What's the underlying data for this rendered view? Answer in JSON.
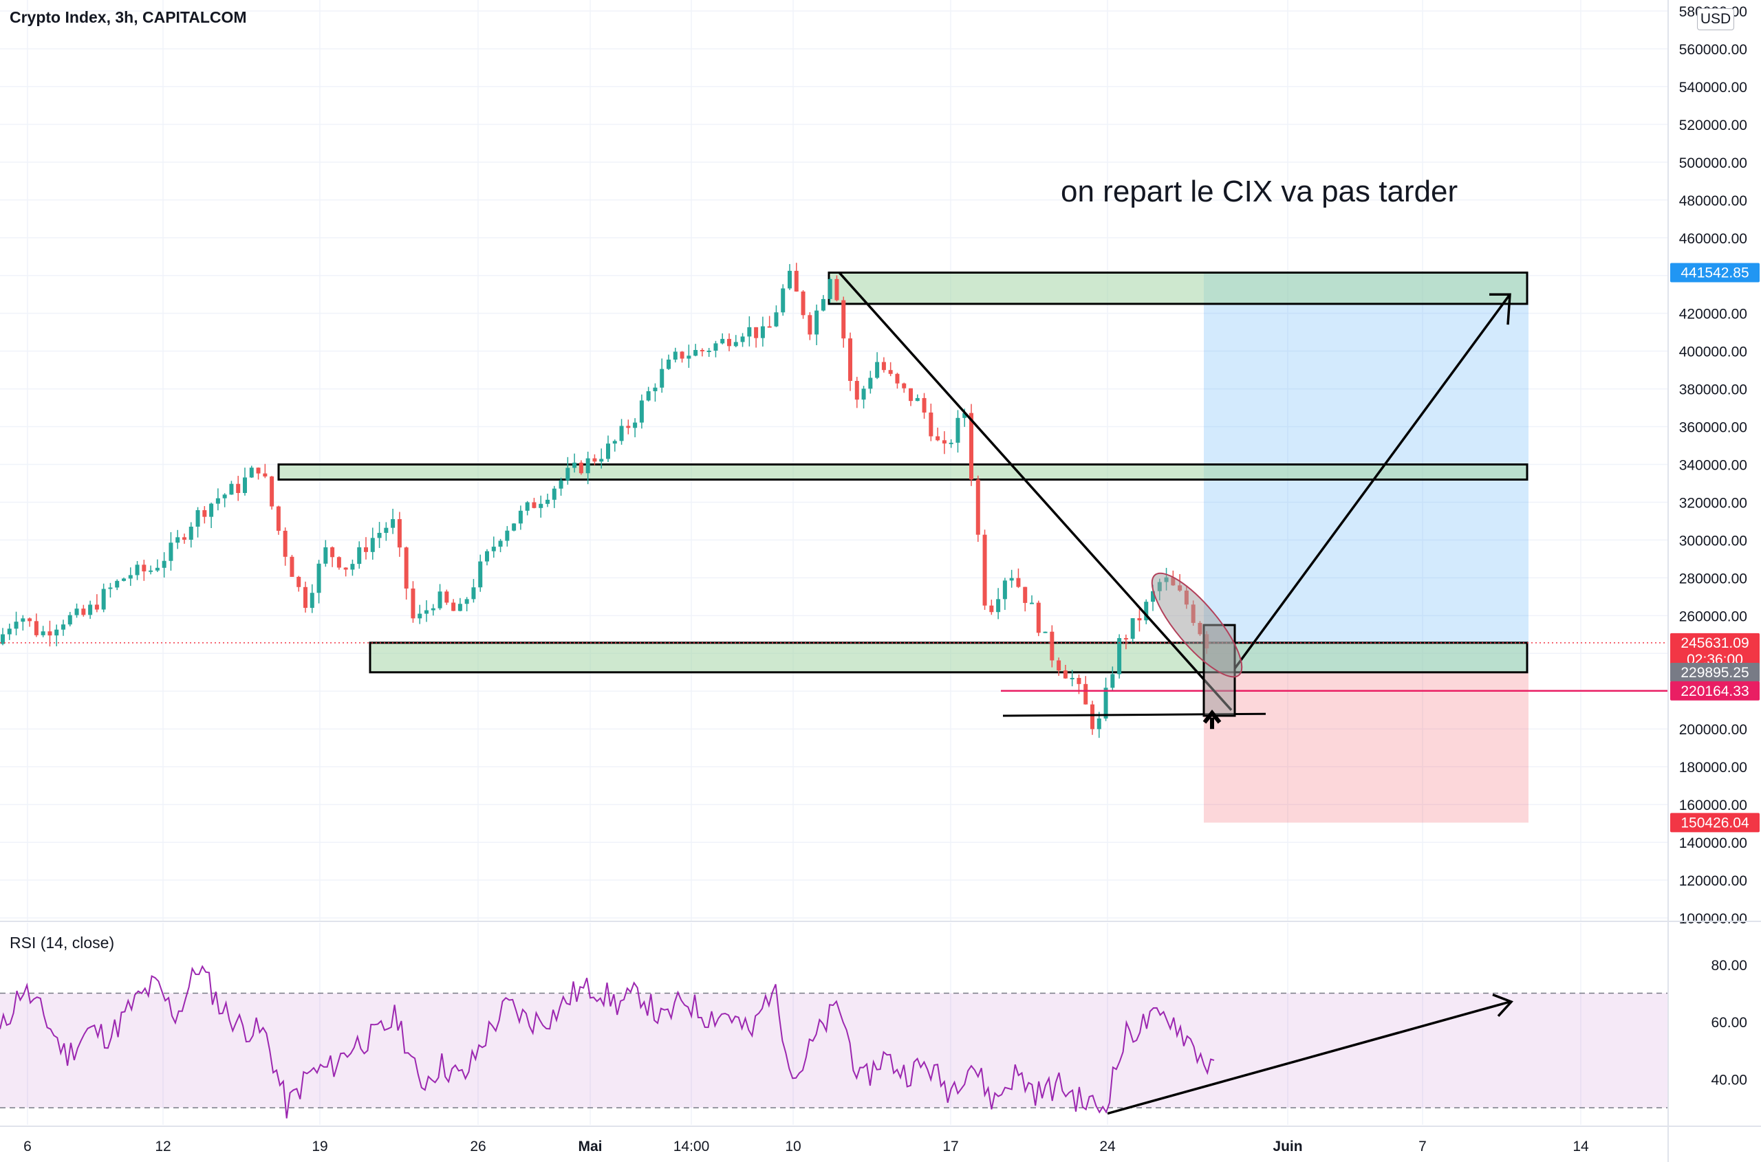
{
  "header": {
    "symbol_title": "Crypto Index, 3h, CAPITALCOM",
    "currency": "USD"
  },
  "annotation_text": "on repart le CIX va pas tarder",
  "price_axis": {
    "ticks": [
      "580000.00",
      "560000.00",
      "540000.00",
      "520000.00",
      "500000.00",
      "480000.00",
      "460000.00",
      "440000.00",
      "420000.00",
      "400000.00",
      "380000.00",
      "360000.00",
      "340000.00",
      "320000.00",
      "300000.00",
      "280000.00",
      "260000.00",
      "240000.00",
      "220000.00",
      "200000.00",
      "180000.00",
      "160000.00",
      "140000.00",
      "120000.00",
      "100000.00"
    ]
  },
  "price_tags": [
    {
      "label": "441542.85",
      "price": 441542.85,
      "color": "#2196f3"
    },
    {
      "label": "245631.09",
      "sub": "02:36:00",
      "price": 245631.09,
      "color": "#f23645"
    },
    {
      "label": "229895.25",
      "price": 229895.25,
      "color": "#787b86"
    },
    {
      "label": "220164.33",
      "price": 220164.33,
      "color": "#e91e63"
    },
    {
      "label": "150426.04",
      "price": 150426.04,
      "color": "#f23645"
    }
  ],
  "time_axis": {
    "labels": [
      "6",
      "12",
      "19",
      "26",
      "Mai",
      "14:00",
      "10",
      "17",
      "24",
      "Juin",
      "7",
      "14"
    ]
  },
  "rsi": {
    "title": "RSI (14, close)",
    "ticks": [
      "80.00",
      "60.00",
      "40.00"
    ],
    "upper_band": 70,
    "lower_band": 30
  },
  "chart_data": {
    "type": "candlestick",
    "symbol": "Crypto Index",
    "interval": "3h",
    "ylim": [
      100000,
      580000
    ],
    "close_path": [
      {
        "x": "Apr 4",
        "y": 245000
      },
      {
        "x": "Apr 5",
        "y": 262000
      },
      {
        "x": "Apr 6",
        "y": 250000
      },
      {
        "x": "Apr 7",
        "y": 258000
      },
      {
        "x": "Apr 8",
        "y": 260000
      },
      {
        "x": "Apr 9",
        "y": 272000
      },
      {
        "x": "Apr 10",
        "y": 282000
      },
      {
        "x": "Apr 11",
        "y": 284000
      },
      {
        "x": "Apr 12",
        "y": 295000
      },
      {
        "x": "Apr 13",
        "y": 312000
      },
      {
        "x": "Apr 14",
        "y": 322000
      },
      {
        "x": "Apr 15",
        "y": 328000
      },
      {
        "x": "Apr 16",
        "y": 340000
      },
      {
        "x": "Apr 17",
        "y": 298000
      },
      {
        "x": "Apr 18",
        "y": 266000
      },
      {
        "x": "Apr 19",
        "y": 295000
      },
      {
        "x": "Apr 20",
        "y": 285000
      },
      {
        "x": "Apr 21",
        "y": 300000
      },
      {
        "x": "Apr 22",
        "y": 310000
      },
      {
        "x": "Apr 23",
        "y": 255000
      },
      {
        "x": "Apr 24",
        "y": 270000
      },
      {
        "x": "Apr 25",
        "y": 260000
      },
      {
        "x": "Apr 26",
        "y": 285000
      },
      {
        "x": "Apr 27",
        "y": 305000
      },
      {
        "x": "Apr 28",
        "y": 315000
      },
      {
        "x": "Apr 29",
        "y": 325000
      },
      {
        "x": "Apr 30",
        "y": 335000
      },
      {
        "x": "May 1",
        "y": 342000
      },
      {
        "x": "May 2",
        "y": 350000
      },
      {
        "x": "May 3",
        "y": 365000
      },
      {
        "x": "May 4",
        "y": 385000
      },
      {
        "x": "May 5",
        "y": 398000
      },
      {
        "x": "May 6",
        "y": 400000
      },
      {
        "x": "May 7",
        "y": 405000
      },
      {
        "x": "May 8",
        "y": 412000
      },
      {
        "x": "May 9",
        "y": 408000
      },
      {
        "x": "May 10",
        "y": 440000
      },
      {
        "x": "May 11",
        "y": 412000
      },
      {
        "x": "May 12",
        "y": 445000
      },
      {
        "x": "May 13",
        "y": 370000
      },
      {
        "x": "May 14",
        "y": 395000
      },
      {
        "x": "May 15",
        "y": 380000
      },
      {
        "x": "May 16",
        "y": 372000
      },
      {
        "x": "May 17",
        "y": 345000
      },
      {
        "x": "May 18",
        "y": 368000
      },
      {
        "x": "May 19",
        "y": 260000
      },
      {
        "x": "May 20",
        "y": 285000
      },
      {
        "x": "May 21",
        "y": 265000
      },
      {
        "x": "May 22",
        "y": 238000
      },
      {
        "x": "May 23",
        "y": 225000
      },
      {
        "x": "May 24",
        "y": 198000
      },
      {
        "x": "May 25",
        "y": 245000
      },
      {
        "x": "May 26",
        "y": 260000
      },
      {
        "x": "May 27",
        "y": 280000
      },
      {
        "x": "May 28",
        "y": 268000
      },
      {
        "x": "May 29",
        "y": 245631
      }
    ],
    "horizontal_zones": [
      {
        "from": 425000,
        "to": 441542
      },
      {
        "from": 332000,
        "to": 340000
      },
      {
        "from": 230000,
        "to": 245631
      }
    ],
    "position": {
      "entry": 229895.25,
      "target": 441542.85,
      "stop": 150426.04,
      "stop_line": 220164.33
    },
    "rsi_series": [
      {
        "x": "Apr 4",
        "y": 56
      },
      {
        "x": "Apr 5",
        "y": 72
      },
      {
        "x": "Apr 6",
        "y": 62
      },
      {
        "x": "Apr 7",
        "y": 48
      },
      {
        "x": "Apr 8",
        "y": 57
      },
      {
        "x": "Apr 9",
        "y": 55
      },
      {
        "x": "Apr 10",
        "y": 66
      },
      {
        "x": "Apr 11",
        "y": 73
      },
      {
        "x": "Apr 12",
        "y": 62
      },
      {
        "x": "Apr 13",
        "y": 80
      },
      {
        "x": "Apr 14",
        "y": 65
      },
      {
        "x": "Apr 15",
        "y": 58
      },
      {
        "x": "Apr 16",
        "y": 56
      },
      {
        "x": "Apr 17",
        "y": 30
      },
      {
        "x": "Apr 18",
        "y": 42
      },
      {
        "x": "Apr 19",
        "y": 44
      },
      {
        "x": "Apr 20",
        "y": 52
      },
      {
        "x": "Apr 21",
        "y": 55
      },
      {
        "x": "Apr 22",
        "y": 62
      },
      {
        "x": "Apr 23",
        "y": 38
      },
      {
        "x": "Apr 24",
        "y": 45
      },
      {
        "x": "Apr 25",
        "y": 40
      },
      {
        "x": "Apr 26",
        "y": 55
      },
      {
        "x": "Apr 27",
        "y": 66
      },
      {
        "x": "Apr 28",
        "y": 60
      },
      {
        "x": "Apr 29",
        "y": 62
      },
      {
        "x": "Apr 30",
        "y": 70
      },
      {
        "x": "May 1",
        "y": 72
      },
      {
        "x": "May 2",
        "y": 66
      },
      {
        "x": "May 3",
        "y": 70
      },
      {
        "x": "May 4",
        "y": 60
      },
      {
        "x": "May 5",
        "y": 68
      },
      {
        "x": "May 6",
        "y": 62
      },
      {
        "x": "May 7",
        "y": 63
      },
      {
        "x": "May 8",
        "y": 55
      },
      {
        "x": "May 9",
        "y": 73
      },
      {
        "x": "May 10",
        "y": 40
      },
      {
        "x": "May 11",
        "y": 55
      },
      {
        "x": "May 12",
        "y": 66
      },
      {
        "x": "May 13",
        "y": 38
      },
      {
        "x": "May 14",
        "y": 48
      },
      {
        "x": "May 15",
        "y": 42
      },
      {
        "x": "May 16",
        "y": 45
      },
      {
        "x": "May 17",
        "y": 36
      },
      {
        "x": "May 18",
        "y": 46
      },
      {
        "x": "May 19",
        "y": 32
      },
      {
        "x": "May 20",
        "y": 42
      },
      {
        "x": "May 21",
        "y": 35
      },
      {
        "x": "May 22",
        "y": 38
      },
      {
        "x": "May 23",
        "y": 32
      },
      {
        "x": "May 24",
        "y": 30
      },
      {
        "x": "May 25",
        "y": 55
      },
      {
        "x": "May 26",
        "y": 60
      },
      {
        "x": "May 27",
        "y": 62
      },
      {
        "x": "May 28",
        "y": 52
      },
      {
        "x": "May 29",
        "y": 42
      }
    ]
  }
}
